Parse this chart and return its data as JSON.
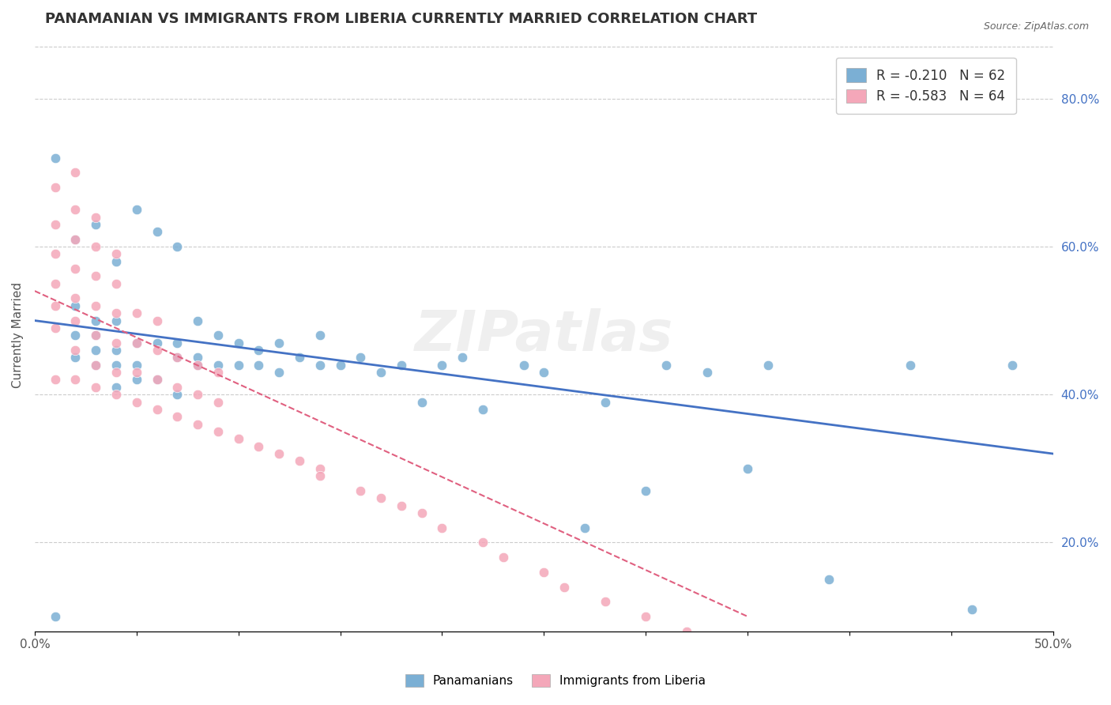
{
  "title": "PANAMANIAN VS IMMIGRANTS FROM LIBERIA CURRENTLY MARRIED CORRELATION CHART",
  "source": "Source: ZipAtlas.com",
  "ylabel": "Currently Married",
  "right_yticks": [
    "20.0%",
    "40.0%",
    "60.0%",
    "80.0%"
  ],
  "right_ytick_vals": [
    0.2,
    0.4,
    0.6,
    0.8
  ],
  "xmin": 0.0,
  "xmax": 0.5,
  "ymin": 0.08,
  "ymax": 0.88,
  "legend_blue_label": "R = -0.210   N = 62",
  "legend_pink_label": "R = -0.583   N = 64",
  "series_blue_label": "Panamanians",
  "series_pink_label": "Immigrants from Liberia",
  "blue_color": "#7BAFD4",
  "pink_color": "#F4A7B9",
  "blue_line_color": "#4472C4",
  "pink_line_color": "#E06080",
  "watermark": "ZIPatlas",
  "blue_scatter_x": [
    0.01,
    0.01,
    0.02,
    0.02,
    0.02,
    0.02,
    0.03,
    0.03,
    0.03,
    0.03,
    0.03,
    0.04,
    0.04,
    0.04,
    0.04,
    0.04,
    0.05,
    0.05,
    0.05,
    0.05,
    0.06,
    0.06,
    0.06,
    0.07,
    0.07,
    0.07,
    0.07,
    0.08,
    0.08,
    0.08,
    0.09,
    0.09,
    0.1,
    0.1,
    0.11,
    0.11,
    0.12,
    0.12,
    0.13,
    0.14,
    0.14,
    0.15,
    0.16,
    0.17,
    0.18,
    0.19,
    0.2,
    0.21,
    0.22,
    0.24,
    0.25,
    0.27,
    0.28,
    0.3,
    0.31,
    0.33,
    0.35,
    0.36,
    0.39,
    0.43,
    0.46,
    0.48
  ],
  "blue_scatter_y": [
    0.1,
    0.72,
    0.45,
    0.48,
    0.52,
    0.61,
    0.44,
    0.46,
    0.48,
    0.5,
    0.63,
    0.41,
    0.44,
    0.46,
    0.5,
    0.58,
    0.42,
    0.44,
    0.47,
    0.65,
    0.42,
    0.47,
    0.62,
    0.4,
    0.45,
    0.47,
    0.6,
    0.44,
    0.45,
    0.5,
    0.44,
    0.48,
    0.44,
    0.47,
    0.44,
    0.46,
    0.43,
    0.47,
    0.45,
    0.44,
    0.48,
    0.44,
    0.45,
    0.43,
    0.44,
    0.39,
    0.44,
    0.45,
    0.38,
    0.44,
    0.43,
    0.22,
    0.39,
    0.27,
    0.44,
    0.43,
    0.3,
    0.44,
    0.15,
    0.44,
    0.11,
    0.44
  ],
  "pink_scatter_x": [
    0.01,
    0.01,
    0.01,
    0.01,
    0.01,
    0.01,
    0.01,
    0.02,
    0.02,
    0.02,
    0.02,
    0.02,
    0.02,
    0.02,
    0.02,
    0.03,
    0.03,
    0.03,
    0.03,
    0.03,
    0.03,
    0.03,
    0.04,
    0.04,
    0.04,
    0.04,
    0.04,
    0.04,
    0.05,
    0.05,
    0.05,
    0.05,
    0.06,
    0.06,
    0.06,
    0.06,
    0.07,
    0.07,
    0.07,
    0.08,
    0.08,
    0.08,
    0.09,
    0.09,
    0.09,
    0.1,
    0.11,
    0.12,
    0.13,
    0.14,
    0.14,
    0.16,
    0.17,
    0.18,
    0.19,
    0.2,
    0.22,
    0.23,
    0.25,
    0.26,
    0.28,
    0.3,
    0.32,
    0.35
  ],
  "pink_scatter_y": [
    0.42,
    0.49,
    0.52,
    0.55,
    0.59,
    0.63,
    0.68,
    0.42,
    0.46,
    0.5,
    0.53,
    0.57,
    0.61,
    0.65,
    0.7,
    0.41,
    0.44,
    0.48,
    0.52,
    0.56,
    0.6,
    0.64,
    0.4,
    0.43,
    0.47,
    0.51,
    0.55,
    0.59,
    0.39,
    0.43,
    0.47,
    0.51,
    0.38,
    0.42,
    0.46,
    0.5,
    0.37,
    0.41,
    0.45,
    0.36,
    0.4,
    0.44,
    0.35,
    0.39,
    0.43,
    0.34,
    0.33,
    0.32,
    0.31,
    0.3,
    0.29,
    0.27,
    0.26,
    0.25,
    0.24,
    0.22,
    0.2,
    0.18,
    0.16,
    0.14,
    0.12,
    0.1,
    0.08,
    0.06
  ],
  "blue_trend_x": [
    0.0,
    0.5
  ],
  "blue_trend_y": [
    0.5,
    0.32
  ],
  "pink_trend_x": [
    0.0,
    0.35
  ],
  "pink_trend_y": [
    0.54,
    0.1
  ]
}
